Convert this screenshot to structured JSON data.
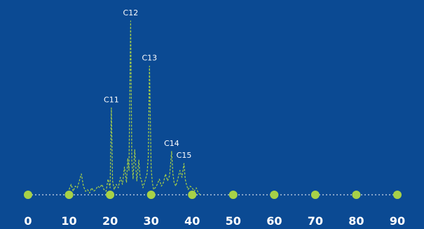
{
  "chart_data": {
    "type": "line",
    "title": "",
    "xlabel": "",
    "ylabel": "",
    "xlim": [
      0,
      90
    ],
    "ylim": [
      0,
      100
    ],
    "grid": false,
    "x_ticks": [
      "0",
      "10",
      "20",
      "30",
      "40",
      "50",
      "60",
      "70",
      "80",
      "90"
    ],
    "series": [
      {
        "x": [
          10,
          10.5,
          11,
          11.5,
          12,
          12.5,
          13,
          13.5,
          14,
          14.5,
          15,
          15.5,
          16,
          16.5,
          17,
          17.5,
          18,
          18.5,
          19,
          19.5,
          20,
          20.3,
          20.6,
          21,
          21.5,
          22,
          22.5,
          23,
          23.5,
          24,
          24.3,
          24.6,
          25,
          25.3,
          25.6,
          26,
          26.5,
          27,
          27.3,
          27.6,
          28,
          28.5,
          29,
          29.3,
          29.6,
          30,
          30.3,
          30.6,
          31,
          31.5,
          32,
          32.5,
          33,
          33.5,
          34,
          34.5,
          35,
          35.3,
          35.6,
          36,
          36.5,
          37,
          37.5,
          38,
          38.3,
          38.6,
          39,
          39.5,
          40,
          40.5,
          41,
          41.5,
          42
        ],
        "y": [
          3,
          6,
          2,
          5,
          4,
          8,
          12,
          5,
          2,
          3,
          1,
          4,
          2,
          3,
          5,
          4,
          6,
          3,
          2,
          9,
          4,
          50,
          8,
          3,
          6,
          4,
          10,
          6,
          16,
          7,
          21,
          14,
          100,
          20,
          9,
          26,
          8,
          20,
          10,
          9,
          4,
          8,
          12,
          22,
          74,
          15,
          7,
          3,
          4,
          6,
          9,
          5,
          7,
          12,
          8,
          11,
          25,
          12,
          7,
          5,
          9,
          14,
          10,
          18,
          9,
          6,
          3,
          5,
          4,
          2,
          4,
          1,
          0
        ]
      }
    ],
    "annotations": [
      {
        "text": "C11",
        "x": 20.3,
        "y": 50
      },
      {
        "text": "C12",
        "x": 25,
        "y": 100
      },
      {
        "text": "C13",
        "x": 29.6,
        "y": 74
      },
      {
        "text": "C14",
        "x": 35,
        "y": 25
      },
      {
        "text": "C15",
        "x": 38,
        "y": 18
      }
    ]
  },
  "colors": {
    "background": "#0b4a93",
    "trace": "#a7d147",
    "markers": "#a7d147",
    "axis_line": "#ffffff",
    "text": "#ffffff"
  }
}
